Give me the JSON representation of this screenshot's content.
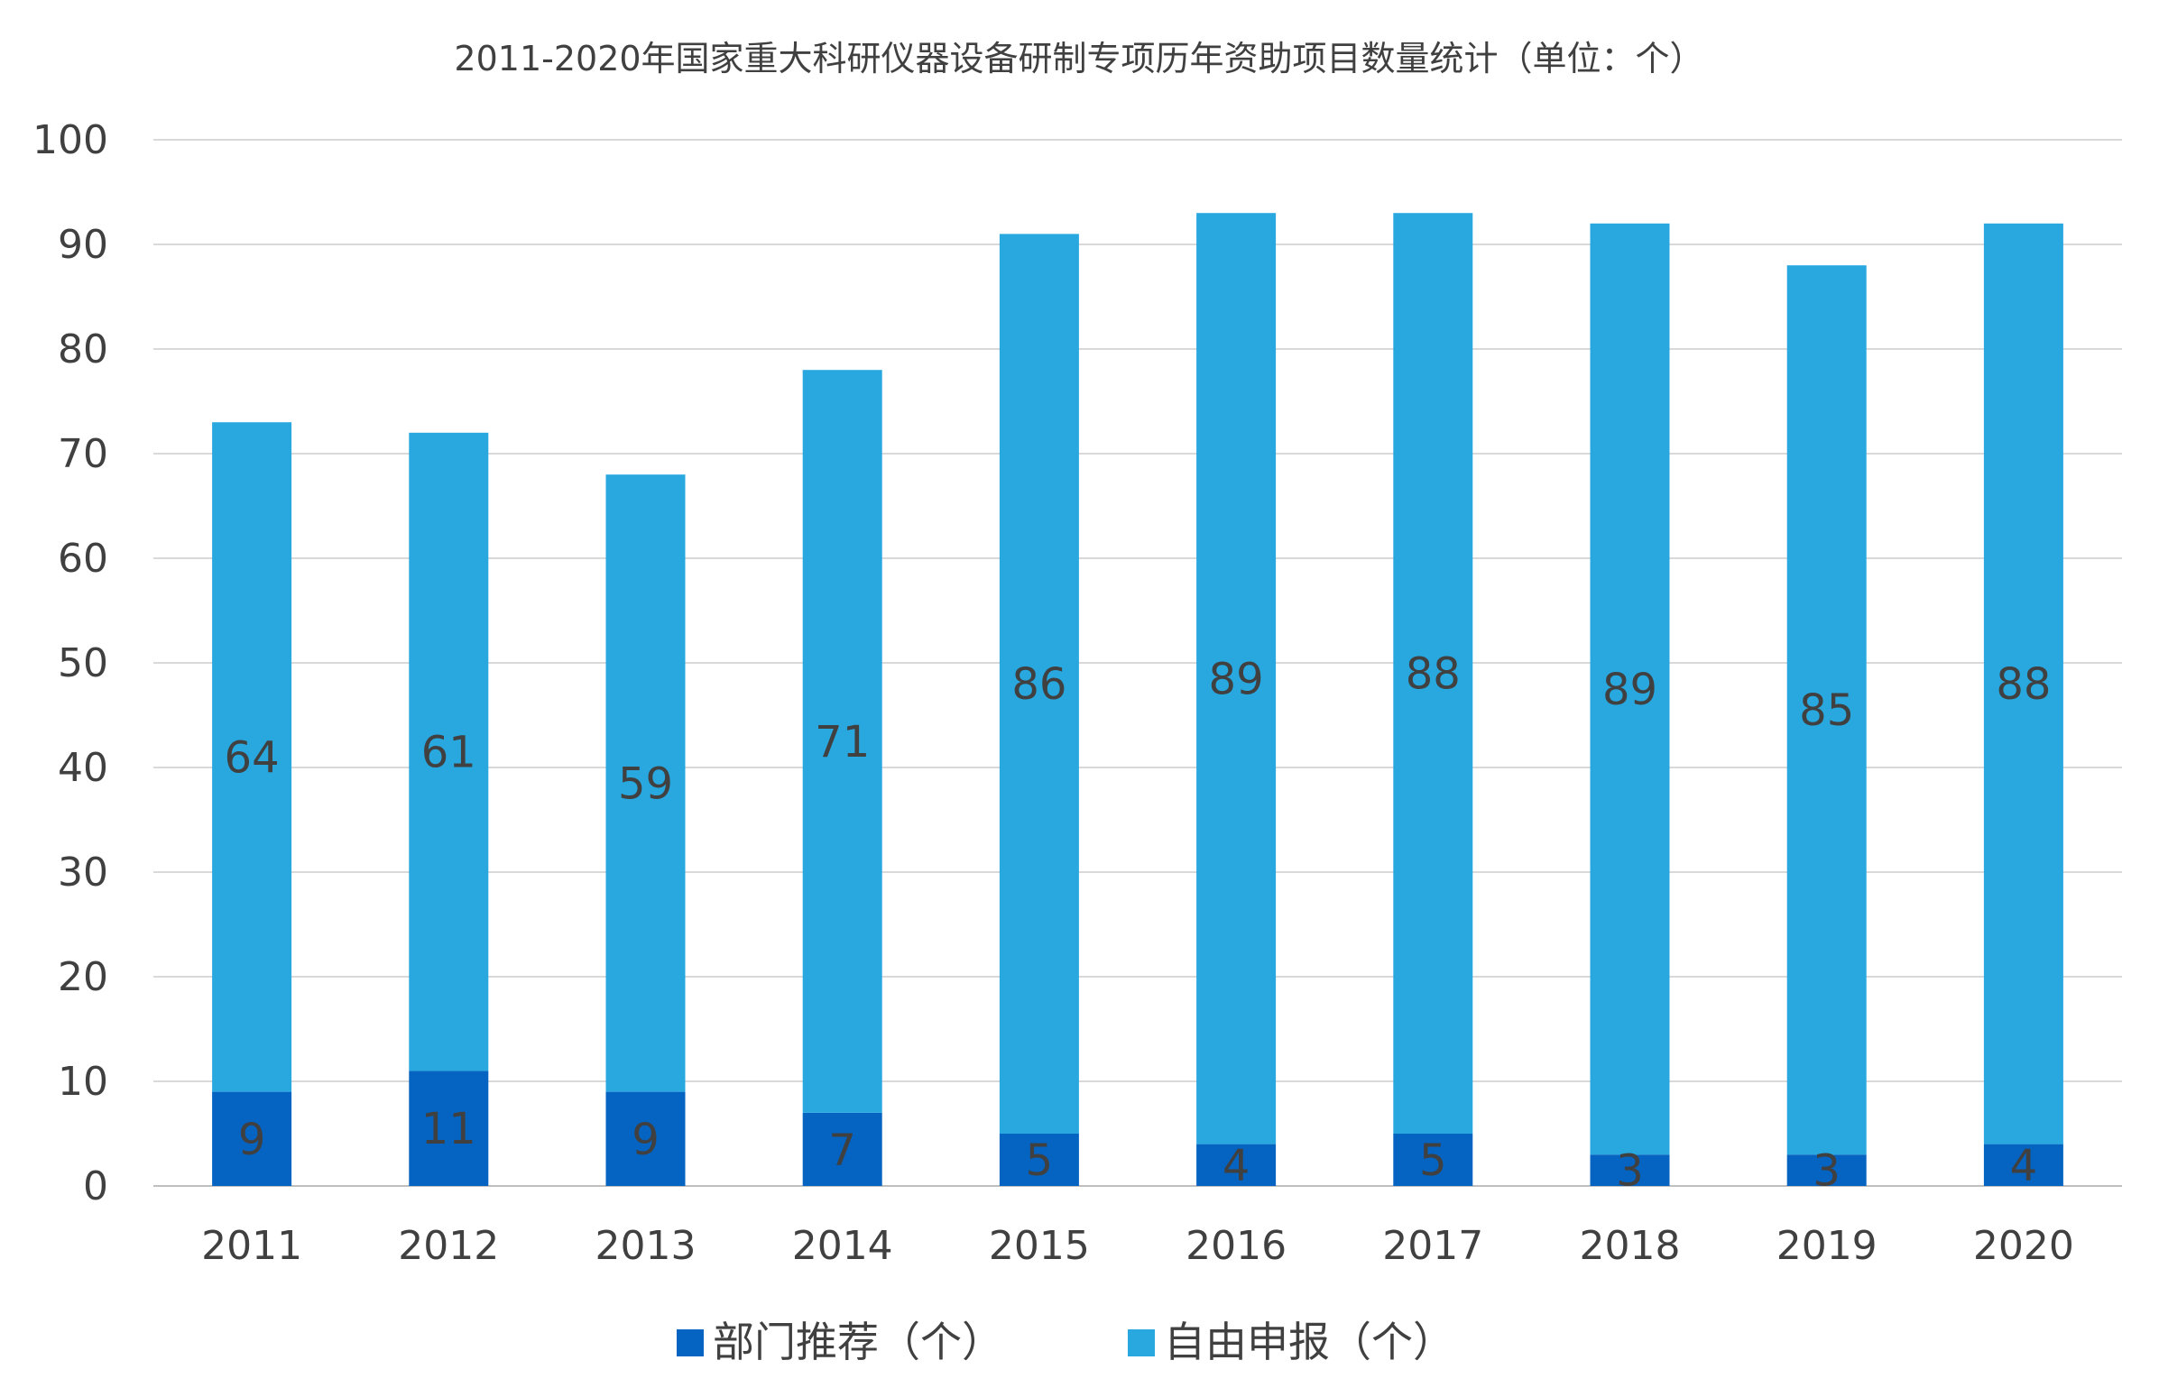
{
  "chart_data": {
    "type": "bar",
    "stacked": true,
    "title": "2011-2020年国家重大科研仪器设备研制专项历年资助项目数量统计（单位：个）",
    "categories": [
      "2011",
      "2012",
      "2013",
      "2014",
      "2015",
      "2016",
      "2017",
      "2018",
      "2019",
      "2020"
    ],
    "series": [
      {
        "name": "部门推荐（个）",
        "color": "#0563C1",
        "values": [
          9,
          11,
          9,
          7,
          5,
          4,
          5,
          3,
          3,
          4
        ]
      },
      {
        "name": "自由申报（个）",
        "color": "#29A8E0",
        "values": [
          64,
          61,
          59,
          71,
          86,
          89,
          88,
          89,
          85,
          88
        ]
      }
    ],
    "ylim": [
      0,
      100
    ],
    "yticks": [
      0,
      10,
      20,
      30,
      40,
      50,
      60,
      70,
      80,
      90,
      100
    ],
    "grid": true,
    "legend": "bottom-center",
    "xlabel": "",
    "ylabel": ""
  }
}
